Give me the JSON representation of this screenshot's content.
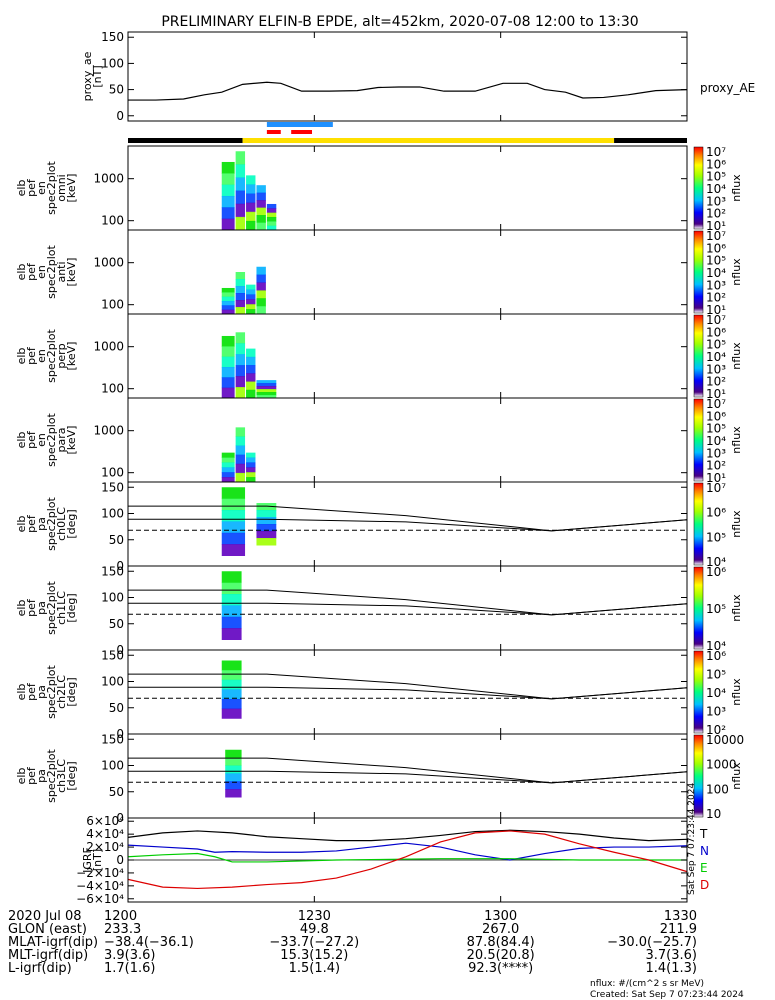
{
  "title": "PRELIMINARY ELFIN-B EPDE, alt=452km, 2020-07-08 12:00 to 13:30",
  "colors": {
    "sci_zone": "#ffe000",
    "sci_black": "#000000",
    "blue_bar": "#1e90ff",
    "red_bar": "#ff0000"
  },
  "chart_data": [
    {
      "type": "line",
      "id": "proxy_ae",
      "ylabel": [
        "proxy_ae",
        "[nT]"
      ],
      "ylim": [
        -10,
        160
      ],
      "yticks": [
        "0",
        "50",
        "100",
        "150"
      ],
      "series": [
        {
          "name": "proxy_AE",
          "color": "#000000",
          "x": [
            0,
            8,
            16,
            22,
            27,
            33,
            40,
            44,
            50,
            58,
            66,
            72,
            78,
            84,
            91,
            100,
            108,
            115,
            120,
            126,
            131,
            137,
            144,
            152,
            161
          ],
          "y": [
            30,
            30,
            32,
            40,
            45,
            60,
            64,
            62,
            47,
            47,
            48,
            54,
            55,
            55,
            47,
            47,
            62,
            62,
            50,
            45,
            34,
            35,
            40,
            48,
            50
          ]
        }
      ]
    },
    {
      "type": "heatmap",
      "id": "en_omni",
      "ylabel": [
        "elb",
        "pef",
        "en",
        "spec2plot",
        "omni",
        "[keV]"
      ],
      "ylog": true,
      "ylim": [
        60,
        6000
      ],
      "yticks": [
        "100",
        "1000"
      ],
      "zticks": [
        "10¹",
        "10²",
        "10³",
        "10⁴",
        "10⁵",
        "10⁶",
        "10⁷"
      ],
      "zlabel": "nflux",
      "active_x": [
        [
          27,
          31
        ],
        [
          31,
          34
        ],
        [
          34,
          37
        ],
        [
          37,
          40
        ],
        [
          40,
          43
        ]
      ],
      "active_ymax": [
        2500,
        4500,
        1200,
        700,
        250
      ]
    },
    {
      "type": "heatmap",
      "id": "en_anti",
      "ylabel": [
        "elb",
        "pef",
        "en",
        "spec2plot",
        "anti",
        "[keV]"
      ],
      "ylog": true,
      "ylim": [
        60,
        6000
      ],
      "yticks": [
        "100",
        "1000"
      ],
      "zticks": [
        "10¹",
        "10²",
        "10³",
        "10⁴",
        "10⁵",
        "10⁶",
        "10⁷"
      ],
      "zlabel": "nflux",
      "active_x": [
        [
          27,
          31
        ],
        [
          31,
          34
        ],
        [
          34,
          37
        ],
        [
          37,
          40
        ]
      ],
      "active_ymax": [
        250,
        600,
        300,
        800
      ]
    },
    {
      "type": "heatmap",
      "id": "en_perp",
      "ylabel": [
        "elb",
        "pef",
        "en",
        "spec2plot",
        "perp",
        "[keV]"
      ],
      "ylog": true,
      "ylim": [
        60,
        6000
      ],
      "yticks": [
        "100",
        "1000"
      ],
      "zticks": [
        "10¹",
        "10²",
        "10³",
        "10⁴",
        "10⁵",
        "10⁶",
        "10⁷"
      ],
      "zlabel": "nflux",
      "active_x": [
        [
          27,
          31
        ],
        [
          31,
          34
        ],
        [
          34,
          37
        ],
        [
          37,
          43
        ]
      ],
      "active_ymax": [
        1800,
        2200,
        900,
        160
      ]
    },
    {
      "type": "heatmap",
      "id": "en_para",
      "ylabel": [
        "elb",
        "pef",
        "en",
        "spec2plot",
        "para",
        "[keV]"
      ],
      "ylog": true,
      "ylim": [
        60,
        6000
      ],
      "yticks": [
        "100",
        "1000"
      ],
      "zticks": [
        "10¹",
        "10²",
        "10³",
        "10⁴",
        "10⁵",
        "10⁶",
        "10⁷"
      ],
      "zlabel": "nflux",
      "active_x": [
        [
          27,
          31
        ],
        [
          31,
          34
        ],
        [
          34,
          37
        ]
      ],
      "active_ymax": [
        300,
        1200,
        300
      ]
    },
    {
      "type": "heatmap",
      "id": "pa_ch0",
      "ylabel": [
        "elb",
        "pef",
        "pa",
        "spec2plot",
        "ch0LC",
        "[deg]"
      ],
      "ylim": [
        0,
        160
      ],
      "yticks": [
        "0",
        "50",
        "100",
        "150"
      ],
      "zticks": [
        "10⁴",
        "10⁵",
        "10⁶",
        "10⁷"
      ],
      "zlabel": "nflux",
      "active_x": [
        [
          27,
          34
        ],
        [
          37,
          43
        ]
      ],
      "active_ymin": [
        20,
        40
      ],
      "active_ymax": [
        150,
        120
      ],
      "lc_x": [
        0,
        40,
        80,
        122,
        161
      ],
      "lc_y": [
        114,
        114,
        96,
        67,
        88
      ],
      "alc_y": [
        89,
        89,
        84,
        67,
        88
      ],
      "dash_y": 68
    },
    {
      "type": "heatmap",
      "id": "pa_ch1",
      "ylabel": [
        "elb",
        "pef",
        "pa",
        "spec2plot",
        "ch1LC",
        "[deg]"
      ],
      "ylim": [
        0,
        160
      ],
      "yticks": [
        "0",
        "50",
        "100",
        "150"
      ],
      "zticks": [
        "10⁴",
        "10⁵",
        "10⁶"
      ],
      "zlabel": "nflux",
      "active_x": [
        [
          27,
          33
        ]
      ],
      "active_ymin": [
        20
      ],
      "active_ymax": [
        150
      ],
      "lc_x": [
        0,
        40,
        80,
        122,
        161
      ],
      "lc_y": [
        114,
        114,
        96,
        67,
        88
      ],
      "alc_y": [
        89,
        89,
        84,
        67,
        88
      ],
      "dash_y": 68
    },
    {
      "type": "heatmap",
      "id": "pa_ch2",
      "ylabel": [
        "elb",
        "pef",
        "pa",
        "spec2plot",
        "ch2LC",
        "[deg]"
      ],
      "ylim": [
        0,
        160
      ],
      "yticks": [
        "0",
        "50",
        "100",
        "150"
      ],
      "zticks": [
        "10²",
        "10³",
        "10⁴",
        "10⁵",
        "10⁶"
      ],
      "zlabel": "nflux",
      "active_x": [
        [
          27,
          33
        ]
      ],
      "active_ymin": [
        30
      ],
      "active_ymax": [
        140
      ],
      "lc_x": [
        0,
        40,
        80,
        122,
        161
      ],
      "lc_y": [
        114,
        114,
        96,
        67,
        88
      ],
      "alc_y": [
        89,
        89,
        84,
        67,
        88
      ],
      "dash_y": 68
    },
    {
      "type": "heatmap",
      "id": "pa_ch3",
      "ylabel": [
        "elb",
        "pef",
        "pa",
        "spec2plot",
        "ch3LC",
        "[deg]"
      ],
      "ylim": [
        0,
        160
      ],
      "yticks": [
        "0",
        "50",
        "100",
        "150"
      ],
      "zticks": [
        "10",
        "100",
        "1000",
        "10000"
      ],
      "zlabel": "nflux",
      "active_x": [
        [
          28,
          33
        ]
      ],
      "active_ymin": [
        40
      ],
      "active_ymax": [
        130
      ],
      "lc_x": [
        0,
        40,
        80,
        122,
        161
      ],
      "lc_y": [
        114,
        114,
        96,
        67,
        88
      ],
      "alc_y": [
        89,
        89,
        84,
        67,
        88
      ],
      "dash_y": 68
    },
    {
      "type": "line",
      "id": "igrf",
      "ylabel": [
        "IGRF",
        "[nT]"
      ],
      "ylim": [
        -65000,
        65000
      ],
      "yticks": [
        "−6×10⁴",
        "−4×10⁴",
        "−2×10⁴",
        "0",
        "2×10⁴",
        "4×10⁴",
        "6×10⁴"
      ],
      "stamp": "Sat Sep  7 07:23:44 2024",
      "series": [
        {
          "name": "T",
          "color": "#000000",
          "x": [
            0,
            10,
            20,
            30,
            40,
            50,
            60,
            70,
            80,
            90,
            100,
            110,
            120,
            130,
            140,
            150,
            161
          ],
          "y": [
            35000,
            42000,
            45000,
            42000,
            36000,
            33000,
            30000,
            30000,
            33000,
            38000,
            44000,
            46000,
            44000,
            40000,
            34000,
            30000,
            32000
          ]
        },
        {
          "name": "N",
          "color": "#0000cc",
          "x": [
            0,
            10,
            20,
            25,
            30,
            40,
            50,
            60,
            70,
            80,
            90,
            100,
            110,
            120,
            130,
            140,
            150,
            161
          ],
          "y": [
            23000,
            20000,
            17000,
            12000,
            13000,
            12000,
            12000,
            14000,
            20000,
            26000,
            20000,
            8000,
            0,
            10000,
            18000,
            20000,
            20000,
            22000
          ]
        },
        {
          "name": "E",
          "color": "#00cc00",
          "x": [
            0,
            10,
            20,
            25,
            30,
            40,
            60,
            90,
            110,
            130,
            161
          ],
          "y": [
            5000,
            8000,
            10000,
            5000,
            -3000,
            -3000,
            0,
            2000,
            2000,
            0,
            0
          ]
        },
        {
          "name": "D",
          "color": "#dd0000",
          "x": [
            0,
            5,
            10,
            20,
            30,
            40,
            50,
            60,
            70,
            80,
            90,
            100,
            110,
            120,
            130,
            140,
            150,
            161
          ],
          "y": [
            -30000,
            -36000,
            -42000,
            -44000,
            -42000,
            -38000,
            -35000,
            -28000,
            -14000,
            5000,
            28000,
            42000,
            45000,
            40000,
            25000,
            12000,
            0,
            -18000
          ]
        }
      ]
    }
  ],
  "x_ticks": [
    "1200",
    "1230",
    "1300",
    "1330"
  ],
  "footer": {
    "rows": [
      {
        "label": "2020 Jul 08",
        "vals": [
          "1200",
          "1230",
          "1300",
          "1330"
        ]
      },
      {
        "label": "GLON (east)",
        "vals": [
          "233.3",
          "49.8",
          "267.0",
          "211.9"
        ]
      },
      {
        "label": "MLAT-igrf(dip)",
        "vals": [
          "−38.4(−36.1)",
          "−33.7(−27.2)",
          "87.8(84.4)",
          "−30.0(−25.7)"
        ]
      },
      {
        "label": "MLT-igrf(dip)",
        "vals": [
          "3.9(3.6)",
          "15.3(15.2)",
          "20.5(20.8)",
          "3.7(3.6)"
        ]
      },
      {
        "label": "L-igrf(dip)",
        "vals": [
          "1.7(1.6)",
          "1.5(1.4)",
          "92.3(****)",
          "1.4(1.3)"
        ]
      }
    ],
    "units": "nflux: #/(cm^2 s sr MeV)",
    "created": "Created: Sat Sep  7 07:23:44 2024"
  }
}
